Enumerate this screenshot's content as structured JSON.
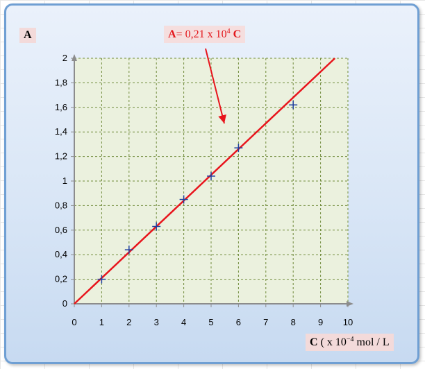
{
  "chart_data": {
    "type": "scatter",
    "ylabel": "A",
    "xlabel_var": "C",
    "xlabel_prefix": "( x 10",
    "xlabel_exp": "−4",
    "xlabel_units": " mol / L",
    "annotation": {
      "var_a": "A",
      "mid": "= 0,21 x 10",
      "exp": "4",
      "var_c": "C"
    },
    "xlim": [
      0,
      10
    ],
    "ylim": [
      0,
      2
    ],
    "grid": true,
    "x_ticks": [
      "0",
      "1",
      "2",
      "3",
      "4",
      "5",
      "6",
      "7",
      "8",
      "9",
      "10"
    ],
    "y_ticks": [
      "0",
      "0,2",
      "0,4",
      "0,6",
      "0,8",
      "1",
      "1,2",
      "1,4",
      "1,6",
      "1,8",
      "2"
    ],
    "points": {
      "marker": "plus",
      "x": [
        1,
        2,
        3,
        4,
        5,
        6,
        8
      ],
      "y": [
        0.2,
        0.44,
        0.63,
        0.85,
        1.04,
        1.27,
        1.62
      ]
    },
    "fit_line": {
      "slope": 0.21,
      "intercept": 0,
      "color": "#e8141c"
    },
    "colors": {
      "plot_bg": "#ebf1de",
      "grid": "#6f8a3a",
      "axis": "#8c8c8c",
      "marker": "#1f3f9f"
    }
  }
}
